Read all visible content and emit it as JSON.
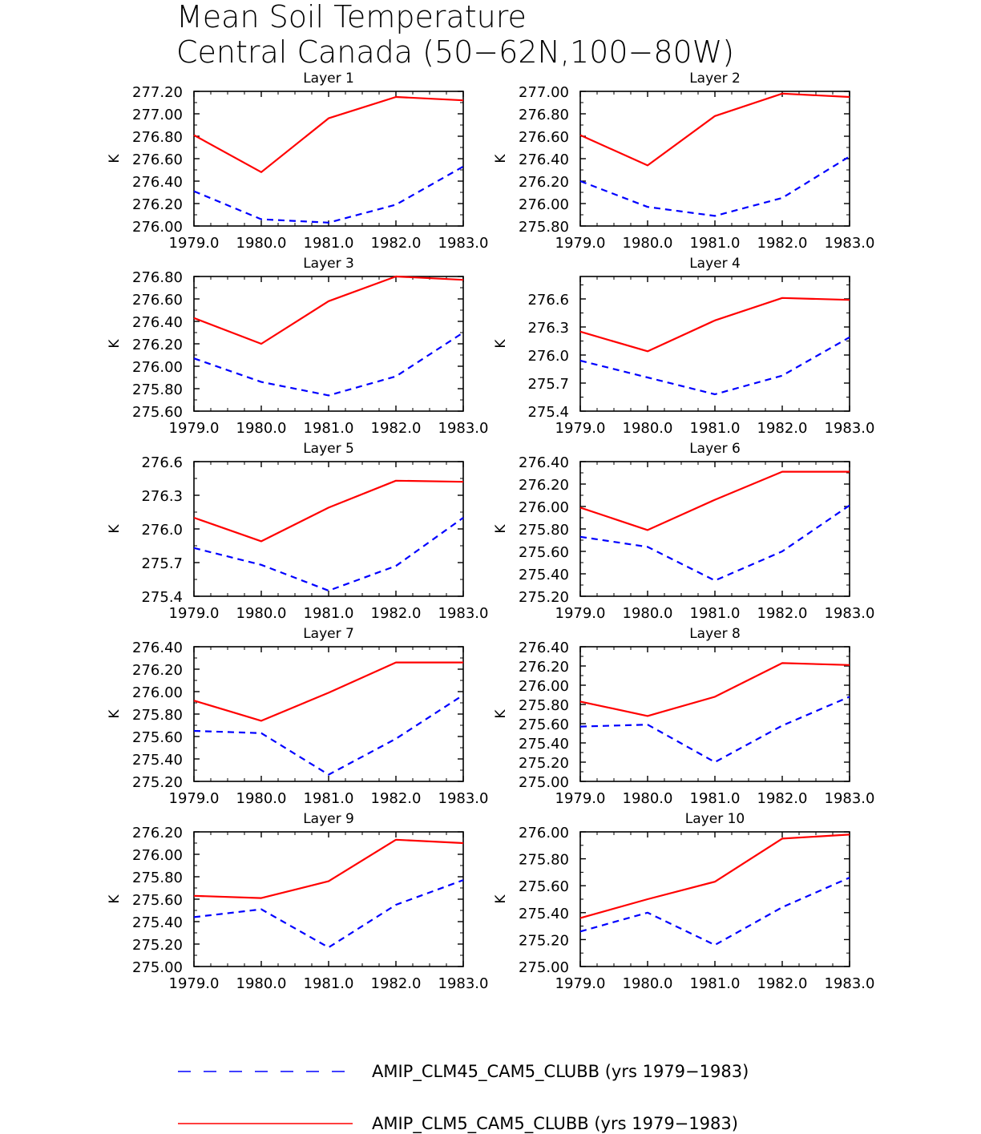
{
  "title": {
    "line1": "Mean Soil Temperature",
    "line2": "Central Canada (50−62N,100−80W)"
  },
  "colors": {
    "clm45": "#0000ff",
    "clm5": "#ff0000",
    "axis": "#000000"
  },
  "legend": {
    "clm45": "AMIP_CLM45_CAM5_CLUBB (yrs 1979−1983)",
    "clm5": "AMIP_CLM5_CAM5_CLUBB (yrs 1979−1983)"
  },
  "chart_data": [
    {
      "type": "line",
      "title": "Layer 1",
      "ylabel": "K",
      "x": [
        1979,
        1980,
        1981,
        1982,
        1983
      ],
      "xticks": [
        "1979.0",
        "1980.0",
        "1981.0",
        "1982.0",
        "1983.0"
      ],
      "ylim": [
        276.0,
        277.2
      ],
      "yticks": [
        "276.00",
        "276.20",
        "276.40",
        "276.60",
        "276.80",
        "277.00",
        "277.20"
      ],
      "series": [
        {
          "name": "AMIP_CLM45_CAM5_CLUBB",
          "style": "dashed",
          "values": [
            276.31,
            276.06,
            276.03,
            276.19,
            276.53
          ]
        },
        {
          "name": "AMIP_CLM5_CAM5_CLUBB",
          "style": "solid",
          "values": [
            276.81,
            276.48,
            276.96,
            277.15,
            277.12
          ]
        }
      ]
    },
    {
      "type": "line",
      "title": "Layer 2",
      "ylabel": "K",
      "x": [
        1979,
        1980,
        1981,
        1982,
        1983
      ],
      "xticks": [
        "1979.0",
        "1980.0",
        "1981.0",
        "1982.0",
        "1983.0"
      ],
      "ylim": [
        275.8,
        277.0
      ],
      "yticks": [
        "275.80",
        "276.00",
        "276.20",
        "276.40",
        "276.60",
        "276.80",
        "277.00"
      ],
      "series": [
        {
          "name": "AMIP_CLM45_CAM5_CLUBB",
          "style": "dashed",
          "values": [
            276.2,
            275.97,
            275.89,
            276.05,
            276.42
          ]
        },
        {
          "name": "AMIP_CLM5_CAM5_CLUBB",
          "style": "solid",
          "values": [
            276.61,
            276.34,
            276.78,
            276.98,
            276.95
          ]
        }
      ]
    },
    {
      "type": "line",
      "title": "Layer 3",
      "ylabel": "K",
      "x": [
        1979,
        1980,
        1981,
        1982,
        1983
      ],
      "xticks": [
        "1979.0",
        "1980.0",
        "1981.0",
        "1982.0",
        "1983.0"
      ],
      "ylim": [
        275.6,
        276.8
      ],
      "yticks": [
        "275.60",
        "275.80",
        "276.00",
        "276.20",
        "276.40",
        "276.60",
        "276.80"
      ],
      "series": [
        {
          "name": "AMIP_CLM45_CAM5_CLUBB",
          "style": "dashed",
          "values": [
            276.07,
            275.86,
            275.74,
            275.91,
            276.3
          ]
        },
        {
          "name": "AMIP_CLM5_CAM5_CLUBB",
          "style": "solid",
          "values": [
            276.43,
            276.2,
            276.58,
            276.8,
            276.77
          ]
        }
      ]
    },
    {
      "type": "line",
      "title": "Layer 4",
      "ylabel": "K",
      "x": [
        1979,
        1980,
        1981,
        1982,
        1983
      ],
      "xticks": [
        "1979.0",
        "1980.0",
        "1981.0",
        "1982.0",
        "1983.0"
      ],
      "ylim": [
        275.4,
        276.84
      ],
      "yticks": [
        "275.4",
        "275.7",
        "276.0",
        "276.3",
        "276.6"
      ],
      "series": [
        {
          "name": "AMIP_CLM45_CAM5_CLUBB",
          "style": "dashed",
          "values": [
            275.94,
            275.76,
            275.58,
            275.78,
            276.19
          ]
        },
        {
          "name": "AMIP_CLM5_CAM5_CLUBB",
          "style": "solid",
          "values": [
            276.25,
            276.04,
            276.37,
            276.61,
            276.59
          ]
        }
      ]
    },
    {
      "type": "line",
      "title": "Layer 5",
      "ylabel": "K",
      "x": [
        1979,
        1980,
        1981,
        1982,
        1983
      ],
      "xticks": [
        "1979.0",
        "1980.0",
        "1981.0",
        "1982.0",
        "1983.0"
      ],
      "ylim": [
        275.4,
        276.6
      ],
      "yticks": [
        "275.4",
        "275.7",
        "276.0",
        "276.3",
        "276.6"
      ],
      "series": [
        {
          "name": "AMIP_CLM45_CAM5_CLUBB",
          "style": "dashed",
          "values": [
            275.83,
            275.68,
            275.45,
            275.67,
            276.1
          ]
        },
        {
          "name": "AMIP_CLM5_CAM5_CLUBB",
          "style": "solid",
          "values": [
            276.1,
            275.89,
            276.19,
            276.43,
            276.42
          ]
        }
      ]
    },
    {
      "type": "line",
      "title": "Layer 6",
      "ylabel": "K",
      "x": [
        1979,
        1980,
        1981,
        1982,
        1983
      ],
      "xticks": [
        "1979.0",
        "1980.0",
        "1981.0",
        "1982.0",
        "1983.0"
      ],
      "ylim": [
        275.2,
        276.4
      ],
      "yticks": [
        "275.20",
        "275.40",
        "275.60",
        "275.80",
        "276.00",
        "276.20",
        "276.40"
      ],
      "series": [
        {
          "name": "AMIP_CLM45_CAM5_CLUBB",
          "style": "dashed",
          "values": [
            275.73,
            275.64,
            275.34,
            275.6,
            276.01
          ]
        },
        {
          "name": "AMIP_CLM5_CAM5_CLUBB",
          "style": "solid",
          "values": [
            275.99,
            275.79,
            276.06,
            276.31,
            276.31
          ]
        }
      ]
    },
    {
      "type": "line",
      "title": "Layer 7",
      "ylabel": "K",
      "x": [
        1979,
        1980,
        1981,
        1982,
        1983
      ],
      "xticks": [
        "1979.0",
        "1980.0",
        "1981.0",
        "1982.0",
        "1983.0"
      ],
      "ylim": [
        275.2,
        276.4
      ],
      "yticks": [
        "275.20",
        "275.40",
        "275.60",
        "275.80",
        "276.00",
        "276.20",
        "276.40"
      ],
      "series": [
        {
          "name": "AMIP_CLM45_CAM5_CLUBB",
          "style": "dashed",
          "values": [
            275.65,
            275.63,
            275.26,
            275.58,
            275.97
          ]
        },
        {
          "name": "AMIP_CLM5_CAM5_CLUBB",
          "style": "solid",
          "values": [
            275.92,
            275.74,
            275.99,
            276.26,
            276.26
          ]
        }
      ]
    },
    {
      "type": "line",
      "title": "Layer 8",
      "ylabel": "K",
      "x": [
        1979,
        1980,
        1981,
        1982,
        1983
      ],
      "xticks": [
        "1979.0",
        "1980.0",
        "1981.0",
        "1982.0",
        "1983.0"
      ],
      "ylim": [
        275.0,
        276.4
      ],
      "yticks": [
        "275.00",
        "275.20",
        "275.40",
        "275.60",
        "275.80",
        "276.00",
        "276.20",
        "276.40"
      ],
      "series": [
        {
          "name": "AMIP_CLM45_CAM5_CLUBB",
          "style": "dashed",
          "values": [
            275.57,
            275.59,
            275.2,
            275.58,
            275.88
          ]
        },
        {
          "name": "AMIP_CLM5_CAM5_CLUBB",
          "style": "solid",
          "values": [
            275.83,
            275.68,
            275.88,
            276.23,
            276.21
          ]
        }
      ]
    },
    {
      "type": "line",
      "title": "Layer 9",
      "ylabel": "K",
      "x": [
        1979,
        1980,
        1981,
        1982,
        1983
      ],
      "xticks": [
        "1979.0",
        "1980.0",
        "1981.0",
        "1982.0",
        "1983.0"
      ],
      "ylim": [
        275.0,
        276.2
      ],
      "yticks": [
        "275.00",
        "275.20",
        "275.40",
        "275.60",
        "275.80",
        "276.00",
        "276.20"
      ],
      "series": [
        {
          "name": "AMIP_CLM45_CAM5_CLUBB",
          "style": "dashed",
          "values": [
            275.44,
            275.51,
            275.17,
            275.55,
            275.77
          ]
        },
        {
          "name": "AMIP_CLM5_CAM5_CLUBB",
          "style": "solid",
          "values": [
            275.63,
            275.61,
            275.76,
            276.13,
            276.1
          ]
        }
      ]
    },
    {
      "type": "line",
      "title": "Layer 10",
      "ylabel": "K",
      "x": [
        1979,
        1980,
        1981,
        1982,
        1983
      ],
      "xticks": [
        "1979.0",
        "1980.0",
        "1981.0",
        "1982.0",
        "1983.0"
      ],
      "ylim": [
        275.0,
        276.0
      ],
      "yticks": [
        "275.00",
        "275.20",
        "275.40",
        "275.60",
        "275.80",
        "276.00"
      ],
      "series": [
        {
          "name": "AMIP_CLM45_CAM5_CLUBB",
          "style": "dashed",
          "values": [
            275.26,
            275.4,
            275.16,
            275.44,
            275.66
          ]
        },
        {
          "name": "AMIP_CLM5_CAM5_CLUBB",
          "style": "solid",
          "values": [
            275.36,
            275.5,
            275.63,
            275.95,
            275.98
          ]
        }
      ]
    }
  ]
}
